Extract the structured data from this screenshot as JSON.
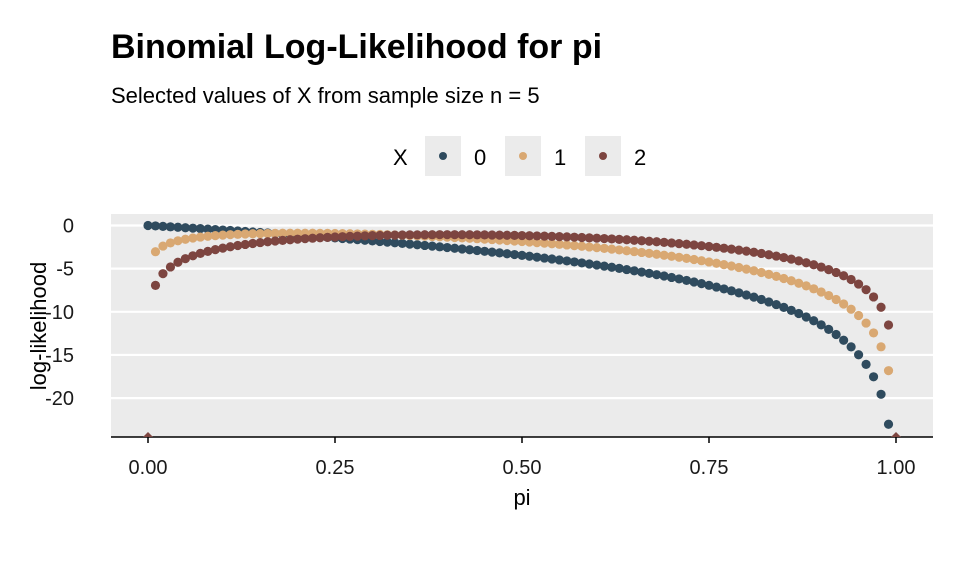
{
  "chart_data": {
    "type": "scatter",
    "title": "Binomial Log-Likelihood for pi",
    "subtitle": "Selected values of X from sample size n = 5",
    "xlabel": "pi",
    "ylabel": "log-likelihood",
    "n": 5,
    "x_step": 0.01,
    "xlim": [
      0,
      1
    ],
    "ylim": [
      -24.5,
      1
    ],
    "x_ticks": [
      0,
      0.25,
      0.5,
      0.75,
      1
    ],
    "x_tick_labels": [
      "0.00",
      "0.25",
      "0.50",
      "0.75",
      "1.00"
    ],
    "y_ticks": [
      0,
      -5,
      -10,
      -15,
      -20
    ],
    "y_tick_labels": [
      "0",
      "-5",
      "-10",
      "-15",
      "-20"
    ],
    "grid": true,
    "legend": {
      "title": "X",
      "position": "top"
    },
    "series": [
      {
        "name": "0",
        "x_value": 0,
        "color": "#2f4b5e"
      },
      {
        "name": "1",
        "x_value": 1,
        "color": "#d9a872"
      },
      {
        "name": "2",
        "x_value": 2,
        "color": "#7d4540"
      }
    ],
    "edge_markers": [
      0,
      1
    ]
  }
}
